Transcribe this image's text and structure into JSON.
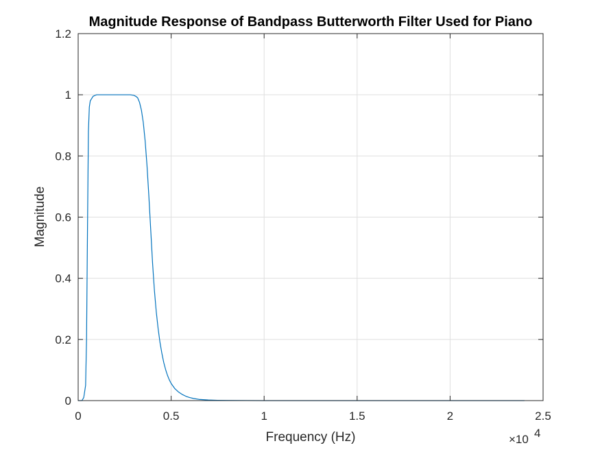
{
  "chart_data": {
    "type": "line",
    "title": "Magnitude Response of Bandpass Butterworth Filter Used for Piano",
    "xlabel": "Frequency (Hz)",
    "ylabel": "Magnitude",
    "xlim": [
      0,
      25000
    ],
    "ylim": [
      0,
      1.2
    ],
    "grid": true,
    "x_exponent": {
      "base": "×10",
      "power": "4"
    },
    "x_ticks": [
      0,
      5000,
      10000,
      15000,
      20000,
      25000
    ],
    "x_tick_labels": [
      "0",
      "0.5",
      "1",
      "1.5",
      "2",
      "2.5"
    ],
    "y_ticks": [
      0,
      0.2,
      0.4,
      0.6,
      0.8,
      1.0,
      1.2
    ],
    "y_tick_labels": [
      "0",
      "0.2",
      "0.4",
      "0.6",
      "0.8",
      "1",
      "1.2"
    ],
    "series": [
      {
        "color": "#0072BD",
        "x": [
          0,
          200,
          300,
          400,
          450,
          500,
          550,
          600,
          650,
          700,
          800,
          900,
          1000,
          1500,
          2000,
          2500,
          2800,
          3000,
          3100,
          3200,
          3300,
          3400,
          3500,
          3600,
          3700,
          3800,
          3900,
          4000,
          4100,
          4200,
          4300,
          4400,
          4500,
          4600,
          4700,
          4800,
          4900,
          5000,
          5200,
          5400,
          5600,
          5800,
          6000,
          6200,
          6500,
          7000,
          7500,
          8000,
          9000,
          10000,
          12000,
          15000,
          20000,
          24000
        ],
        "y": [
          0,
          0.0,
          0.01,
          0.05,
          0.2,
          0.55,
          0.88,
          0.96,
          0.98,
          0.985,
          0.995,
          0.998,
          1.0,
          1.0,
          1.0,
          1.0,
          1.0,
          0.998,
          0.995,
          0.99,
          0.975,
          0.95,
          0.91,
          0.85,
          0.77,
          0.67,
          0.56,
          0.45,
          0.36,
          0.29,
          0.235,
          0.19,
          0.155,
          0.125,
          0.102,
          0.083,
          0.068,
          0.056,
          0.039,
          0.028,
          0.02,
          0.014,
          0.01,
          0.007,
          0.004,
          0.002,
          0.001,
          0.0005,
          0.0002,
          0,
          0,
          0,
          0,
          0
        ]
      }
    ]
  }
}
